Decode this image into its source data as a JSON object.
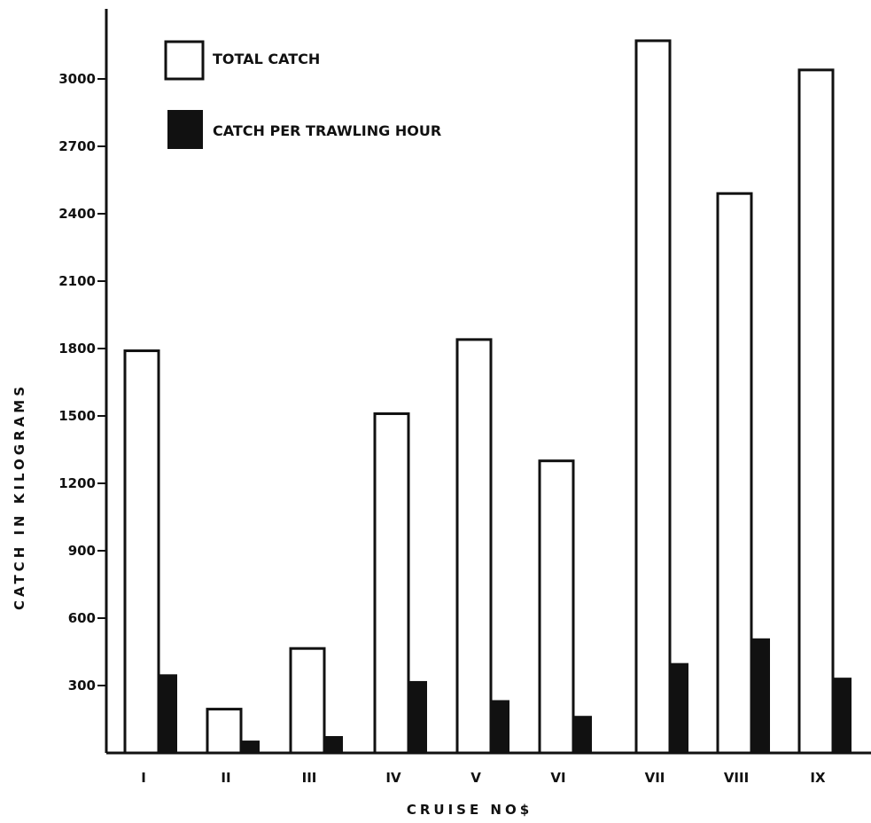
{
  "chart_data": {
    "type": "bar",
    "title": "",
    "xlabel": "CRUISE NO$",
    "ylabel": "CATCH IN KILOGRAMS",
    "categories": [
      "I",
      "II",
      "III",
      "IV",
      "V",
      "VI",
      "VII",
      "VIII",
      "IX"
    ],
    "series": [
      {
        "name": "TOTAL CATCH",
        "color": "#ffffff",
        "values": [
          1790,
          195,
          465,
          1510,
          1840,
          1300,
          3170,
          2490,
          3040
        ]
      },
      {
        "name": "CATCH PER TRAWLING HOUR",
        "color": "#111111",
        "values": [
          350,
          55,
          75,
          320,
          235,
          165,
          400,
          510,
          335
        ]
      }
    ],
    "yticks": [
      300,
      600,
      900,
      1200,
      1500,
      1800,
      2100,
      2400,
      2700,
      3000
    ],
    "ylim": [
      0,
      3300
    ],
    "legend_position": "top-left",
    "grid": false
  }
}
